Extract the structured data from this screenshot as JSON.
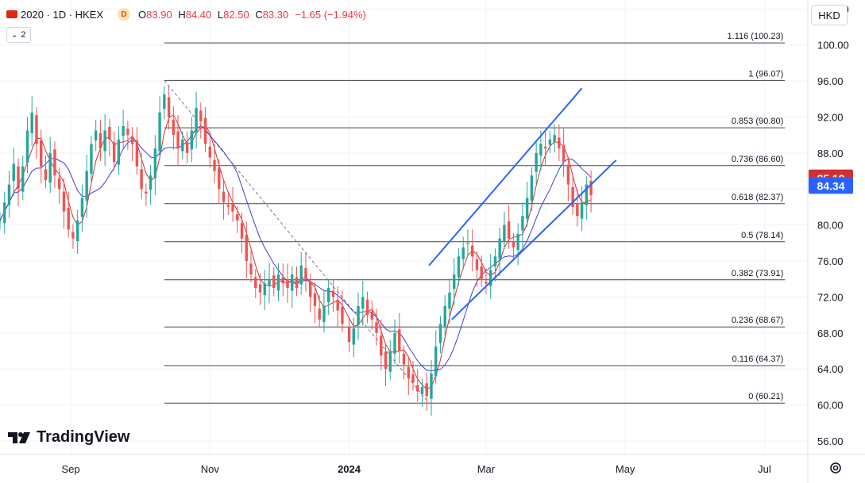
{
  "header": {
    "symbol": "2020 · 1D · HKEX",
    "badge": "D",
    "open_label": "O",
    "open": "83.90",
    "high_label": "H",
    "high": "84.40",
    "low_label": "L",
    "low": "82.50",
    "close_label": "C",
    "close": "83.30",
    "change": "−1.65 (−1.94%)",
    "indicators_count": "2"
  },
  "currency": "HKD",
  "brand": "TradingView",
  "colors": {
    "up": "#26a69a",
    "down": "#ef5350",
    "ma_fast": "#d32f2f",
    "ma_slow": "#3f3fd6",
    "channel": "#2962ff",
    "fib": "#444444",
    "price_tag_red": "#d32f2f",
    "price_tag_blue": "#2962ff"
  },
  "chart_data": {
    "type": "candlestick",
    "y_ticks": [
      "104.00",
      "100.00",
      "96.00",
      "92.00",
      "88.00",
      "84.00",
      "80.00",
      "76.00",
      "72.00",
      "68.00",
      "64.00",
      "60.00",
      "56.00"
    ],
    "x_ticks": [
      "Sep",
      "Nov",
      "2024",
      "Mar",
      "May",
      "Jul"
    ],
    "ylim": [
      54.5,
      105
    ],
    "x_dates": [
      "2023-08-01",
      "2024-07-20"
    ],
    "last_price_red": "85.19",
    "last_price_blue": "84.34",
    "fib_levels": [
      {
        "label": "1.116 (100.23)",
        "value": 100.23
      },
      {
        "label": "1 (96.07)",
        "value": 96.07
      },
      {
        "label": "0.853 (90.80)",
        "value": 90.8
      },
      {
        "label": "0.736 (86.60)",
        "value": 86.6
      },
      {
        "label": "0.618 (82.37)",
        "value": 82.37
      },
      {
        "label": "0.5 (78.14)",
        "value": 78.14
      },
      {
        "label": "0.382 (73.91)",
        "value": 73.91
      },
      {
        "label": "0.236 (68.67)",
        "value": 68.67
      },
      {
        "label": "0.116 (64.37)",
        "value": 64.37
      },
      {
        "label": "0 (60.21)",
        "value": 60.21
      }
    ],
    "fib_start_date": "2023-10-12",
    "fib_end_date": "2024-07-10",
    "fib_diag": [
      [
        "2023-10-12",
        96.07
      ],
      [
        "2024-02-05",
        60.21
      ]
    ],
    "channel_upper": [
      [
        "2024-02-05",
        75.5
      ],
      [
        "2024-04-12",
        95.2
      ]
    ],
    "channel_lower": [
      [
        "2024-02-15",
        69.5
      ],
      [
        "2024-04-27",
        87.2
      ]
    ],
    "closes": [
      [
        "2023-08-01",
        80.5
      ],
      [
        "2023-08-03",
        82.5
      ],
      [
        "2023-08-05",
        84.5
      ],
      [
        "2023-08-07",
        86.8
      ],
      [
        "2023-08-09",
        84.0
      ],
      [
        "2023-08-11",
        86.5
      ],
      [
        "2023-08-13",
        90.5
      ],
      [
        "2023-08-15",
        92.5
      ],
      [
        "2023-08-17",
        89.0
      ],
      [
        "2023-08-19",
        86.5
      ],
      [
        "2023-08-21",
        85.0
      ],
      [
        "2023-08-23",
        88.0
      ],
      [
        "2023-08-25",
        85.5
      ],
      [
        "2023-08-27",
        84.0
      ],
      [
        "2023-08-29",
        81.5
      ],
      [
        "2023-08-31",
        79.5
      ],
      [
        "2023-09-02",
        78.5
      ],
      [
        "2023-09-04",
        80.5
      ],
      [
        "2023-09-06",
        83.0
      ],
      [
        "2023-09-08",
        86.0
      ],
      [
        "2023-09-10",
        89.0
      ],
      [
        "2023-09-12",
        90.5
      ],
      [
        "2023-09-14",
        88.5
      ],
      [
        "2023-09-16",
        90.5
      ],
      [
        "2023-09-18",
        89.5
      ],
      [
        "2023-09-20",
        87.0
      ],
      [
        "2023-09-22",
        89.5
      ],
      [
        "2023-09-24",
        91.0
      ],
      [
        "2023-09-26",
        90.0
      ],
      [
        "2023-09-28",
        89.0
      ],
      [
        "2023-09-30",
        86.5
      ],
      [
        "2023-10-02",
        84.0
      ],
      [
        "2023-10-04",
        83.5
      ],
      [
        "2023-10-06",
        85.5
      ],
      [
        "2023-10-08",
        88.5
      ],
      [
        "2023-10-10",
        92.5
      ],
      [
        "2023-10-12",
        94.5
      ],
      [
        "2023-10-14",
        92.0
      ],
      [
        "2023-10-16",
        90.0
      ],
      [
        "2023-10-18",
        88.5
      ],
      [
        "2023-10-20",
        89.5
      ],
      [
        "2023-10-22",
        88.0
      ],
      [
        "2023-10-24",
        90.5
      ],
      [
        "2023-10-26",
        93.0
      ],
      [
        "2023-10-28",
        91.5
      ],
      [
        "2023-10-30",
        89.0
      ],
      [
        "2023-11-01",
        87.5
      ],
      [
        "2023-11-03",
        86.0
      ],
      [
        "2023-11-05",
        84.0
      ],
      [
        "2023-11-07",
        82.5
      ],
      [
        "2023-11-09",
        82.0
      ],
      [
        "2023-11-11",
        81.5
      ],
      [
        "2023-11-13",
        80.5
      ],
      [
        "2023-11-15",
        78.5
      ],
      [
        "2023-11-17",
        76.0
      ],
      [
        "2023-11-19",
        74.5
      ],
      [
        "2023-11-21",
        73.0
      ],
      [
        "2023-11-23",
        72.5
      ],
      [
        "2023-11-25",
        73.5
      ],
      [
        "2023-11-27",
        74.0
      ],
      [
        "2023-11-29",
        73.0
      ],
      [
        "2023-12-01",
        74.5
      ],
      [
        "2023-12-03",
        73.5
      ],
      [
        "2023-12-05",
        73.0
      ],
      [
        "2023-12-07",
        74.5
      ],
      [
        "2023-12-09",
        73.0
      ],
      [
        "2023-12-11",
        75.5
      ],
      [
        "2023-12-13",
        74.0
      ],
      [
        "2023-12-15",
        72.0
      ],
      [
        "2023-12-17",
        71.0
      ],
      [
        "2023-12-19",
        69.5
      ],
      [
        "2023-12-21",
        71.0
      ],
      [
        "2023-12-23",
        73.0
      ],
      [
        "2023-12-25",
        72.0
      ],
      [
        "2023-12-27",
        70.5
      ],
      [
        "2023-12-29",
        69.0
      ],
      [
        "2024-01-01",
        67.0
      ],
      [
        "2024-01-03",
        68.5
      ],
      [
        "2024-01-05",
        71.0
      ],
      [
        "2024-01-07",
        72.0
      ],
      [
        "2024-01-09",
        70.0
      ],
      [
        "2024-01-11",
        69.5
      ],
      [
        "2024-01-13",
        68.0
      ],
      [
        "2024-01-15",
        65.5
      ],
      [
        "2024-01-17",
        64.0
      ],
      [
        "2024-01-19",
        66.0
      ],
      [
        "2024-01-21",
        68.0
      ],
      [
        "2024-01-23",
        66.0
      ],
      [
        "2024-01-25",
        64.5
      ],
      [
        "2024-01-27",
        63.0
      ],
      [
        "2024-01-29",
        62.5
      ],
      [
        "2024-01-31",
        61.5
      ],
      [
        "2024-02-02",
        62.0
      ],
      [
        "2024-02-04",
        61.0
      ],
      [
        "2024-02-06",
        63.5
      ],
      [
        "2024-02-08",
        66.5
      ],
      [
        "2024-02-10",
        69.0
      ],
      [
        "2024-02-12",
        71.0
      ],
      [
        "2024-02-14",
        72.5
      ],
      [
        "2024-02-16",
        74.5
      ],
      [
        "2024-02-18",
        76.5
      ],
      [
        "2024-02-20",
        77.5
      ],
      [
        "2024-02-22",
        78.0
      ],
      [
        "2024-02-24",
        76.5
      ],
      [
        "2024-02-26",
        75.0
      ],
      [
        "2024-02-28",
        74.0
      ],
      [
        "2024-03-01",
        73.5
      ],
      [
        "2024-03-03",
        75.0
      ],
      [
        "2024-03-05",
        76.5
      ],
      [
        "2024-03-07",
        78.5
      ],
      [
        "2024-03-09",
        80.0
      ],
      [
        "2024-03-11",
        78.5
      ],
      [
        "2024-03-13",
        77.5
      ],
      [
        "2024-03-15",
        79.0
      ],
      [
        "2024-03-17",
        81.0
      ],
      [
        "2024-03-19",
        83.0
      ],
      [
        "2024-03-21",
        85.5
      ],
      [
        "2024-03-23",
        88.0
      ],
      [
        "2024-03-25",
        89.0
      ],
      [
        "2024-03-27",
        88.5
      ],
      [
        "2024-03-29",
        89.5
      ],
      [
        "2024-03-31",
        90.0
      ],
      [
        "2024-04-02",
        88.5
      ],
      [
        "2024-04-04",
        87.0
      ],
      [
        "2024-04-06",
        84.5
      ],
      [
        "2024-04-08",
        82.0
      ],
      [
        "2024-04-10",
        81.0
      ],
      [
        "2024-04-12",
        82.5
      ],
      [
        "2024-04-14",
        84.5
      ],
      [
        "2024-04-16",
        83.3
      ]
    ]
  }
}
